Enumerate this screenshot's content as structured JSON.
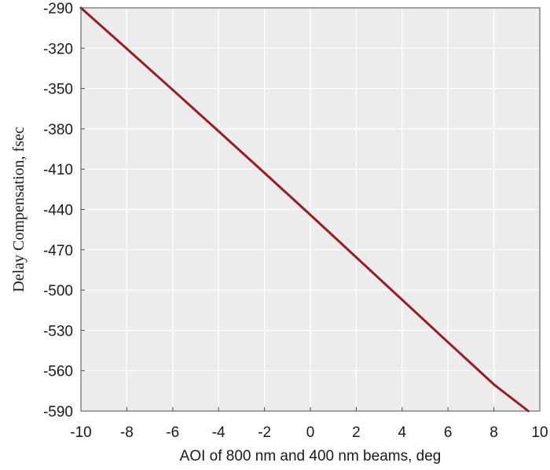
{
  "chart_data": {
    "type": "line",
    "title": "",
    "xlabel": "AOI of 800 nm and 400 nm beams, deg",
    "ylabel": "Delay Compensation, fsec",
    "xlim": [
      -10,
      10
    ],
    "ylim": [
      -590,
      -290
    ],
    "xticks": [
      -10,
      -8,
      -6,
      -4,
      -2,
      0,
      2,
      4,
      6,
      8,
      10
    ],
    "yticks": [
      -290,
      -320,
      -350,
      -380,
      -410,
      -440,
      -470,
      -500,
      -530,
      -560,
      -590
    ],
    "grid": true,
    "series": [
      {
        "x": [
          -10,
          -8,
          -6,
          -4,
          -2,
          0,
          2,
          4,
          6,
          8,
          9.5
        ],
        "y": [
          -290,
          -320.4,
          -351,
          -381.8,
          -412.8,
          -444,
          -475.6,
          -507.2,
          -538.8,
          -570.2,
          -590
        ]
      }
    ]
  },
  "colors": {
    "plot_background": "#ececec",
    "grid": "#ffffff",
    "series_line": "#9b1c20",
    "axis": "#4a4a4a"
  }
}
